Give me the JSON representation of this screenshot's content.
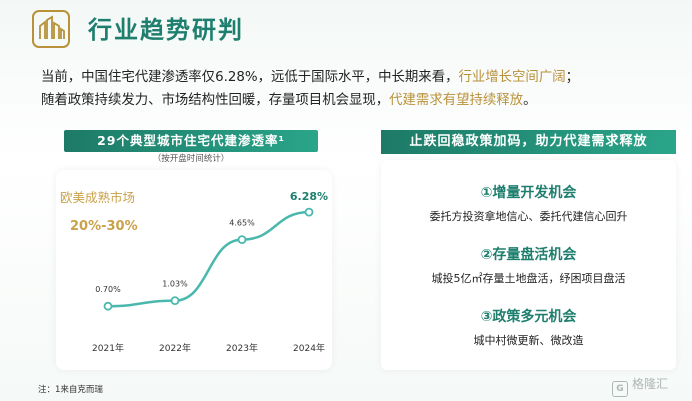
{
  "page": {
    "title": "行业趋势研判",
    "intro": {
      "line1_before": "当前，中国住宅代建渗透率仅6.28%，远低于国际水平，中长期来看，",
      "line1_highlight": "行业增长空间广阔",
      "line1_after": "；",
      "line2_before": "随着政策持续发力、市场结构性回暖，存量项目机会显现，",
      "line2_highlight": "代建需求有望持续释放",
      "line2_after": "。"
    },
    "footnote": "注：1来自克而瑞",
    "watermark": "格隆汇"
  },
  "left_panel": {
    "banner": "29个典型城市住宅代建渗透率¹",
    "subtitle": "（按开盘时间统计）",
    "reference_label": "欧美成熟市场",
    "reference_value": "20%-30%"
  },
  "chart_data": {
    "type": "line",
    "title": "29个典型城市住宅代建渗透率¹",
    "subtitle": "（按开盘时间统计）",
    "categories": [
      "2021年",
      "2022年",
      "2023年",
      "2024年"
    ],
    "values": [
      0.7,
      1.03,
      4.65,
      6.28
    ],
    "value_labels": [
      "0.70%",
      "1.03%",
      "4.65%",
      "6.28%"
    ],
    "annotations": [
      {
        "label": "欧美成熟市场",
        "value": "20%-30%"
      }
    ],
    "ylim": [
      0,
      7
    ],
    "grid": false,
    "line_color": "#4ab8ac"
  },
  "right_panel": {
    "banner": "止跌回稳政策加码，助力代建需求释放",
    "opportunities": [
      {
        "title": "①增量开发机会",
        "desc": "委托方投资拿地信心、委托代建信心回升"
      },
      {
        "title": "②存量盘活机会",
        "desc": "城投5亿㎡存量土地盘活，纾困项目盘活"
      },
      {
        "title": "③政策多元机会",
        "desc": "城中村微更新、微改造"
      }
    ]
  },
  "colors": {
    "brand": "#1e7f6e",
    "highlight": "#b8913a",
    "banner_from": "#1d7a67",
    "banner_to": "#2aa58a"
  }
}
